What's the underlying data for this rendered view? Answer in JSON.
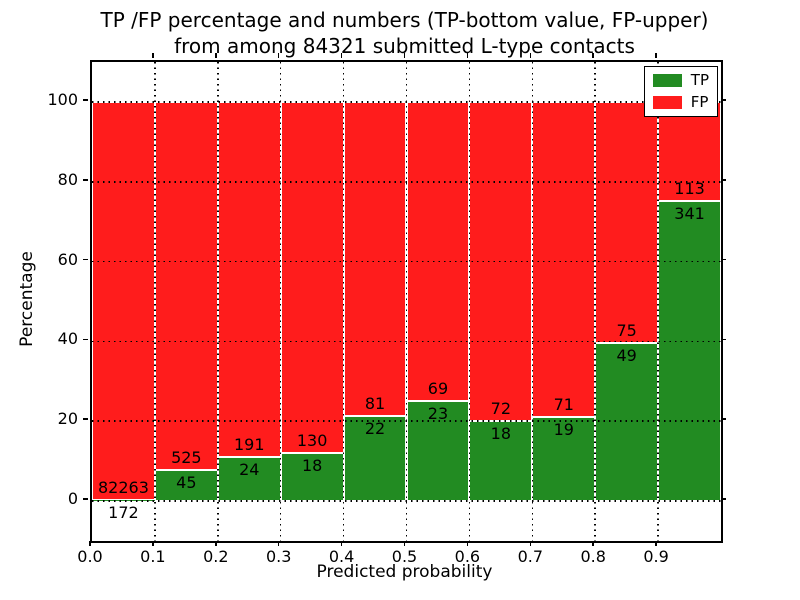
{
  "chart_data": {
    "type": "bar",
    "stacked": true,
    "units": "percent",
    "title_line1": "TP /FP percentage and numbers (TP-bottom value, FP-upper)",
    "title_line2": "from among 84321 submitted L-type contacts",
    "total_submitted": 84321,
    "xlabel": "Predicted probability",
    "ylabel": "Percentage",
    "xlim": [
      0.0,
      1.0
    ],
    "ylim": [
      -10,
      110
    ],
    "x_ticks": [
      0.0,
      0.1,
      0.2,
      0.3,
      0.4,
      0.5,
      0.6,
      0.7,
      0.8,
      0.9
    ],
    "x_tick_labels": [
      "0.0",
      "0.1",
      "0.2",
      "0.3",
      "0.4",
      "0.5",
      "0.6",
      "0.7",
      "0.8",
      "0.9"
    ],
    "y_ticks": [
      0,
      20,
      40,
      60,
      80,
      100
    ],
    "y_tick_labels": [
      "0",
      "20",
      "40",
      "60",
      "80",
      "100"
    ],
    "grid": "dotted-black-both-axes",
    "bar_edge_color": "#ffffff",
    "bins": [
      {
        "x0": 0.0,
        "x1": 0.1,
        "tp": 172,
        "fp": 82263
      },
      {
        "x0": 0.1,
        "x1": 0.2,
        "tp": 45,
        "fp": 525
      },
      {
        "x0": 0.2,
        "x1": 0.3,
        "tp": 24,
        "fp": 191
      },
      {
        "x0": 0.3,
        "x1": 0.4,
        "tp": 18,
        "fp": 130
      },
      {
        "x0": 0.4,
        "x1": 0.5,
        "tp": 22,
        "fp": 81
      },
      {
        "x0": 0.5,
        "x1": 0.6,
        "tp": 23,
        "fp": 69
      },
      {
        "x0": 0.6,
        "x1": 0.7,
        "tp": 18,
        "fp": 72
      },
      {
        "x0": 0.7,
        "x1": 0.8,
        "tp": 19,
        "fp": 71
      },
      {
        "x0": 0.8,
        "x1": 0.9,
        "tp": 49,
        "fp": 75
      },
      {
        "x0": 0.9,
        "x1": 1.0,
        "tp": 341,
        "fp": 113
      }
    ],
    "legend": [
      {
        "label": "TP",
        "color": "#228b22"
      },
      {
        "label": "FP",
        "color": "#ff1c1c"
      }
    ],
    "legend_position": "upper-right"
  }
}
